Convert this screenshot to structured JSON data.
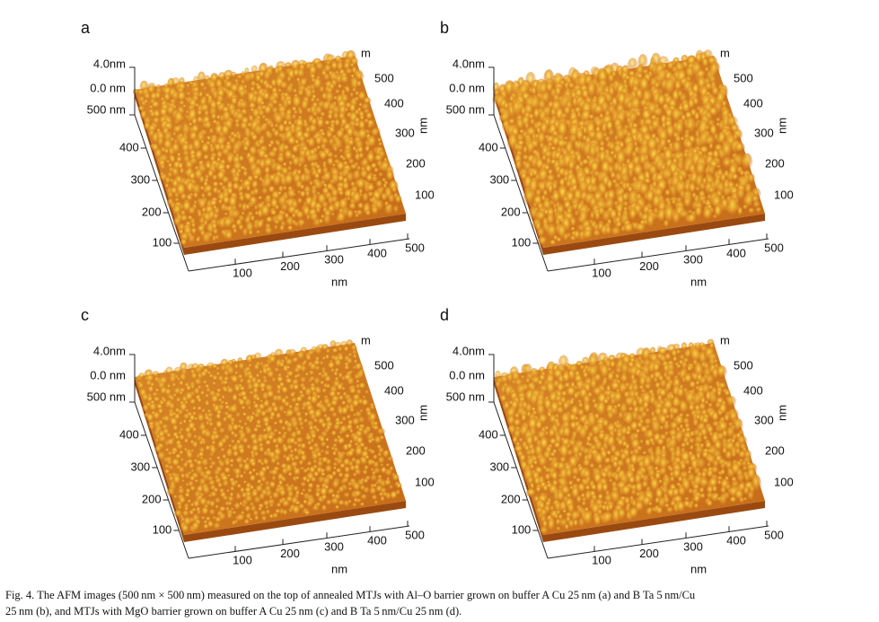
{
  "figure": {
    "panels": [
      {
        "letter": "a",
        "z_labels": [
          "4.0nm",
          "0.0 nm",
          "500 nm"
        ],
        "left_ticks": [
          "400",
          "300",
          "200",
          "100"
        ],
        "right_unit_top": "m",
        "right_ticks": [
          "500",
          "400",
          "300",
          "200",
          "100"
        ],
        "right_unit": "nm",
        "bottom_ticks": [
          "100",
          "200",
          "300",
          "400",
          "500"
        ],
        "bottom_unit": "nm"
      },
      {
        "letter": "b",
        "z_labels": [
          "4.0nm",
          "0.0 nm",
          "500 nm"
        ],
        "left_ticks": [
          "400",
          "300",
          "200",
          "100"
        ],
        "right_unit_top": "m",
        "right_ticks": [
          "500",
          "400",
          "300",
          "200",
          "100"
        ],
        "right_unit": "nm",
        "bottom_ticks": [
          "100",
          "200",
          "300",
          "400",
          "500"
        ],
        "bottom_unit": "nm"
      },
      {
        "letter": "c",
        "z_labels": [
          "4.0nm",
          "0.0 nm",
          "500 nm"
        ],
        "left_ticks": [
          "400",
          "300",
          "200",
          "100"
        ],
        "right_unit_top": "m",
        "right_ticks": [
          "500",
          "400",
          "300",
          "200",
          "100"
        ],
        "right_unit": "nm",
        "bottom_ticks": [
          "100",
          "200",
          "300",
          "400",
          "500"
        ],
        "bottom_unit": "nm"
      },
      {
        "letter": "d",
        "z_labels": [
          "4.0nm",
          "0.0 nm",
          "500 nm"
        ],
        "left_ticks": [
          "400",
          "300",
          "200",
          "100"
        ],
        "right_unit_top": "m",
        "right_ticks": [
          "500",
          "400",
          "300",
          "200",
          "100"
        ],
        "right_unit": "nm",
        "bottom_ticks": [
          "100",
          "200",
          "300",
          "400",
          "500"
        ],
        "bottom_unit": "nm"
      }
    ],
    "caption": [
      "Fig. 4.  The AFM images (500 nm × 500 nm) measured on the top of annealed MTJs with Al–O barrier grown on buffer A Cu 25 nm (a) and B Ta 5 nm/Cu",
      "25 nm (b), and MTJs with MgO barrier grown on buffer A Cu 25 nm (c) and B Ta 5 nm/Cu 25 nm (d)."
    ]
  }
}
